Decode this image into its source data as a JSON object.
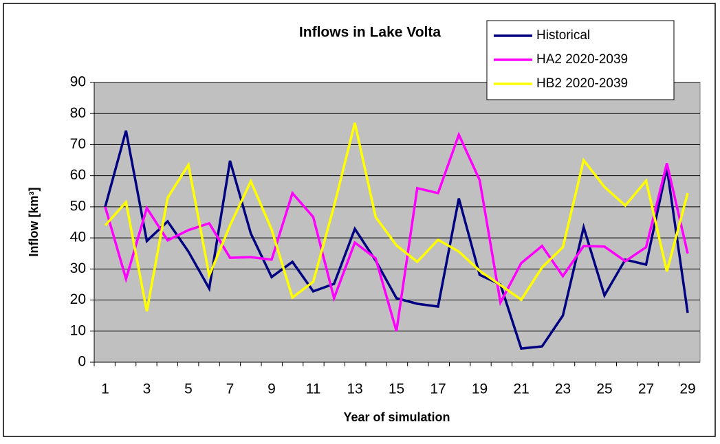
{
  "chart_data": {
    "type": "line",
    "title": "Inflows in Lake Volta",
    "x_label": "Year of simulation",
    "y_label": "Inflow [km³]",
    "categories": [
      "1",
      null,
      "3",
      null,
      "5",
      null,
      "7",
      null,
      "9",
      null,
      "11",
      null,
      "13",
      null,
      "15",
      null,
      "17",
      null,
      "19",
      null,
      "21",
      null,
      "23",
      null,
      "25",
      null,
      "27",
      null,
      "29"
    ],
    "series": [
      {
        "name": "Historical",
        "color": "#000080",
        "values": [
          50,
          74.5,
          39,
          45.3,
          35.6,
          23.7,
          64.8,
          41.4,
          27.4,
          32.3,
          22.8,
          25.2,
          42.9,
          32.7,
          20.6,
          18.8,
          17.9,
          52.7,
          28.1,
          25,
          4.4,
          5.1,
          15,
          43.4,
          21.5,
          33,
          31.4,
          62.6,
          15.9
        ]
      },
      {
        "name": "HA2 2020-2039",
        "color": "#ff00ff",
        "values": [
          50,
          26.8,
          49.6,
          39.2,
          42.5,
          44.7,
          33.6,
          33.8,
          33,
          54.4,
          46.7,
          20.6,
          38.5,
          33.4,
          10,
          56,
          54.4,
          73.2,
          58.6,
          19.2,
          31.9,
          37.4,
          27.7,
          37.4,
          37.2,
          32.5,
          37,
          64,
          35
        ]
      },
      {
        "name": "HB2 2020-2039",
        "color": "#ffff00",
        "values": [
          44,
          51.5,
          16.4,
          52.9,
          63.5,
          27.9,
          44,
          58.2,
          42.7,
          20.8,
          25.9,
          50.2,
          77,
          46.7,
          37.6,
          32.3,
          39.4,
          35.6,
          29.4,
          24.8,
          20.1,
          30.5,
          37,
          65,
          56.4,
          50.4,
          58.4,
          29.2,
          54.4
        ]
      }
    ],
    "ylim": [
      0,
      90
    ],
    "yticks": [
      0,
      10,
      20,
      30,
      40,
      50,
      60,
      70,
      80,
      90
    ],
    "grid": true,
    "legend": "top-right",
    "plot_background": "#c0c0c0"
  }
}
